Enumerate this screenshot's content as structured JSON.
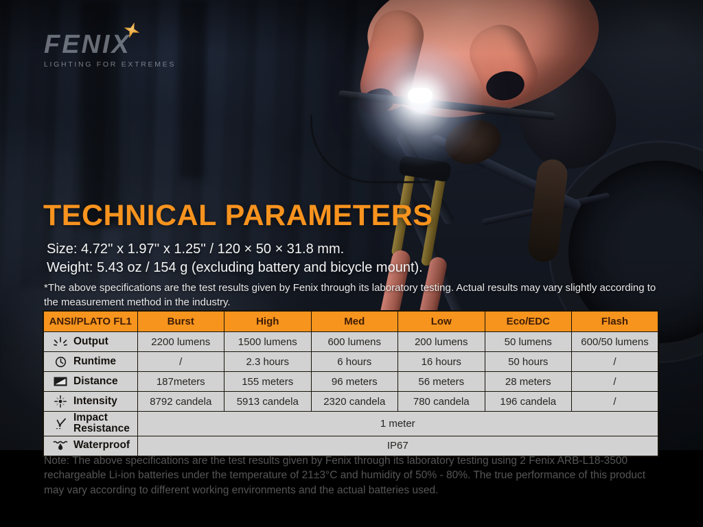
{
  "brand": {
    "logo_text": "FENIX",
    "tagline": "LIGHTING FOR EXTREMES"
  },
  "heading": {
    "title": "TECHNICAL PARAMETERS"
  },
  "specs": {
    "size": "Size: 4.72'' x 1.97'' x 1.25'' / 120 × 50 × 31.8 mm.",
    "weight": "Weight: 5.43 oz / 154 g (excluding battery and bicycle mount).",
    "disclaimer": "*The above specifications are the test results given by Fenix through its laboratory testing. Actual results may vary slightly according to the measurement method in the industry."
  },
  "table": {
    "header": [
      "ANSI/PLATO FL1",
      "Burst",
      "High",
      "Med",
      "Low",
      "Eco/EDC",
      "Flash"
    ],
    "rows": [
      {
        "icon": "output-rays-icon",
        "label": "Output",
        "values": [
          "2200 lumens",
          "1500 lumens",
          "600 lumens",
          "200 lumens",
          "50 lumens",
          "600/50 lumens"
        ]
      },
      {
        "icon": "clock-icon",
        "label": "Runtime",
        "values": [
          "/",
          "2.3 hours",
          "6 hours",
          "16 hours",
          "50 hours",
          "/"
        ]
      },
      {
        "icon": "beam-distance-icon",
        "label": "Distance",
        "values": [
          "187meters",
          "155 meters",
          "96 meters",
          "56 meters",
          "28 meters",
          "/"
        ]
      },
      {
        "icon": "intensity-crosshair-icon",
        "label": "Intensity",
        "values": [
          "8792 candela",
          "5913 candela",
          "2320 candela",
          "780 candela",
          "196 candela",
          "/"
        ]
      },
      {
        "icon": "impact-arrow-icon",
        "label": "Impact Resistance",
        "span_value": "1 meter"
      },
      {
        "icon": "waterproof-droplet-icon",
        "label": "Waterproof",
        "span_value": "IP67"
      }
    ]
  },
  "note": {
    "text": "Note: The above specifications are the test results given by Fenix through its laboratory testing using 2 Fenix ARB-L18-3500 rechargeable Li-ion batteries under the temperature of 21±3°C and humidity of 50% - 80%. The true performance of this product may vary according to different working environments and the actual batteries used."
  },
  "colors": {
    "accent_orange": "#f7931e",
    "table_header_bg": "#f7941d",
    "table_cell_bg": "#d2d2d2",
    "note_text": "#565656"
  }
}
